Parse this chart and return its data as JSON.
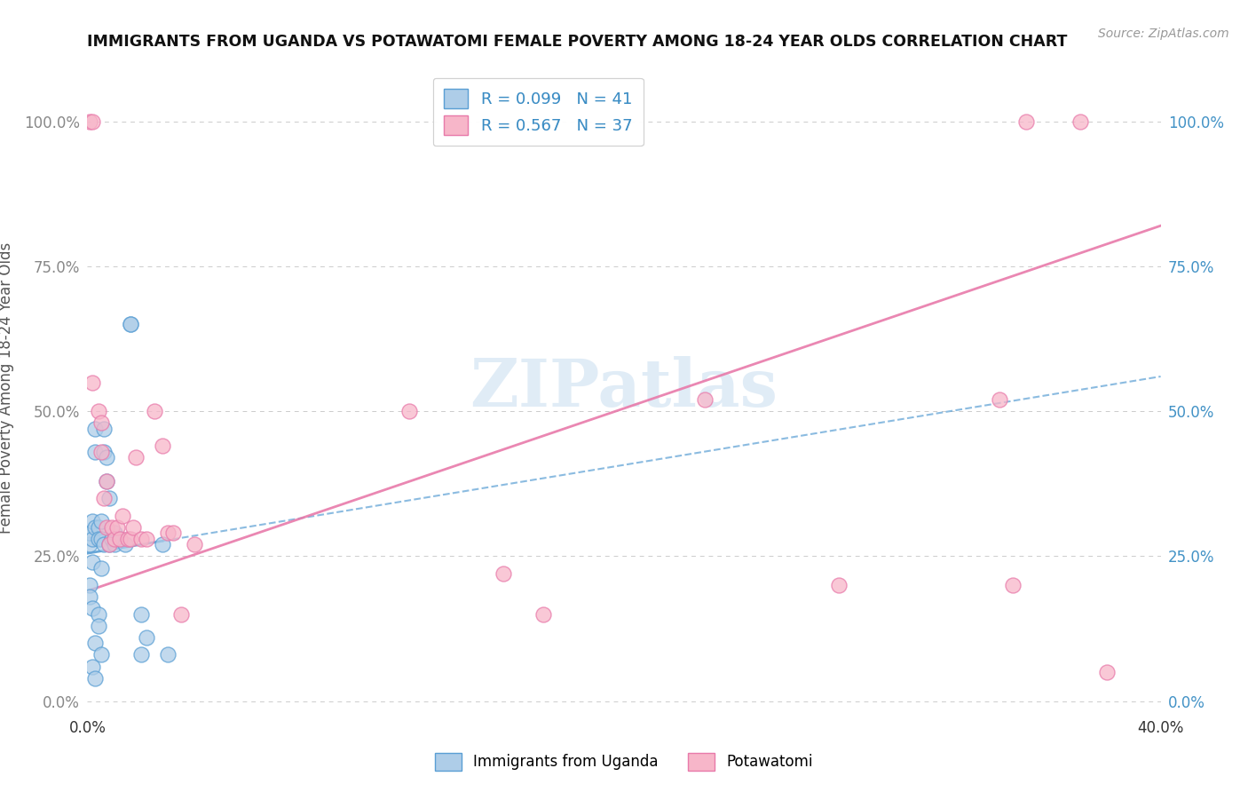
{
  "title": "IMMIGRANTS FROM UGANDA VS POTAWATOMI FEMALE POVERTY AMONG 18-24 YEAR OLDS CORRELATION CHART",
  "source": "Source: ZipAtlas.com",
  "ylabel": "Female Poverty Among 18-24 Year Olds",
  "xlim": [
    0.0,
    0.4
  ],
  "ylim": [
    -0.02,
    1.1
  ],
  "xticks": [
    0.0,
    0.05,
    0.1,
    0.15,
    0.2,
    0.25,
    0.3,
    0.35,
    0.4
  ],
  "yticks": [
    0.0,
    0.25,
    0.5,
    0.75,
    1.0
  ],
  "ytick_labels_left": [
    "0.0%",
    "25.0%",
    "50.0%",
    "75.0%",
    "100.0%"
  ],
  "ytick_labels_right": [
    "0.0%",
    "25.0%",
    "50.0%",
    "75.0%",
    "100.0%"
  ],
  "xtick_labels": [
    "0.0%",
    "",
    "",
    "",
    "",
    "",
    "",
    "",
    "40.0%"
  ],
  "legend_labels": [
    "Immigrants from Uganda",
    "Potawatomi"
  ],
  "R_blue": 0.099,
  "N_blue": 41,
  "R_pink": 0.567,
  "N_pink": 37,
  "blue_color": "#aecde8",
  "pink_color": "#f7b6c9",
  "blue_edge": "#5a9fd4",
  "pink_edge": "#e87aaa",
  "trend_blue_color": "#5a9fd4",
  "trend_pink_color": "#e87aaa",
  "watermark": "ZIPatlas",
  "blue_x": [
    0.001,
    0.001,
    0.001,
    0.001,
    0.002,
    0.002,
    0.002,
    0.002,
    0.002,
    0.003,
    0.003,
    0.003,
    0.003,
    0.003,
    0.004,
    0.004,
    0.004,
    0.004,
    0.005,
    0.005,
    0.005,
    0.005,
    0.006,
    0.006,
    0.006,
    0.007,
    0.007,
    0.008,
    0.008,
    0.009,
    0.01,
    0.01,
    0.012,
    0.014,
    0.016,
    0.016,
    0.02,
    0.02,
    0.022,
    0.028,
    0.03
  ],
  "blue_y": [
    0.27,
    0.29,
    0.2,
    0.18,
    0.28,
    0.31,
    0.24,
    0.16,
    0.06,
    0.43,
    0.47,
    0.3,
    0.1,
    0.04,
    0.3,
    0.28,
    0.15,
    0.13,
    0.31,
    0.28,
    0.23,
    0.08,
    0.47,
    0.43,
    0.27,
    0.42,
    0.38,
    0.35,
    0.27,
    0.28,
    0.27,
    0.29,
    0.28,
    0.27,
    0.65,
    0.65,
    0.15,
    0.08,
    0.11,
    0.27,
    0.08
  ],
  "pink_x": [
    0.001,
    0.002,
    0.002,
    0.004,
    0.005,
    0.005,
    0.006,
    0.007,
    0.007,
    0.008,
    0.009,
    0.01,
    0.011,
    0.012,
    0.013,
    0.015,
    0.016,
    0.017,
    0.018,
    0.02,
    0.022,
    0.025,
    0.028,
    0.03,
    0.032,
    0.035,
    0.04,
    0.12,
    0.155,
    0.17,
    0.23,
    0.28,
    0.34,
    0.345,
    0.35,
    0.37,
    0.38
  ],
  "pink_y": [
    1.0,
    1.0,
    0.55,
    0.5,
    0.48,
    0.43,
    0.35,
    0.38,
    0.3,
    0.27,
    0.3,
    0.28,
    0.3,
    0.28,
    0.32,
    0.28,
    0.28,
    0.3,
    0.42,
    0.28,
    0.28,
    0.5,
    0.44,
    0.29,
    0.29,
    0.15,
    0.27,
    0.5,
    0.22,
    0.15,
    0.52,
    0.2,
    0.52,
    0.2,
    1.0,
    1.0,
    0.05
  ],
  "trend_pink_x0": 0.0,
  "trend_pink_y0": 0.19,
  "trend_pink_x1": 0.4,
  "trend_pink_y1": 0.82,
  "trend_blue_x0": 0.0,
  "trend_blue_y0": 0.255,
  "trend_blue_x1": 0.4,
  "trend_blue_y1": 0.56
}
